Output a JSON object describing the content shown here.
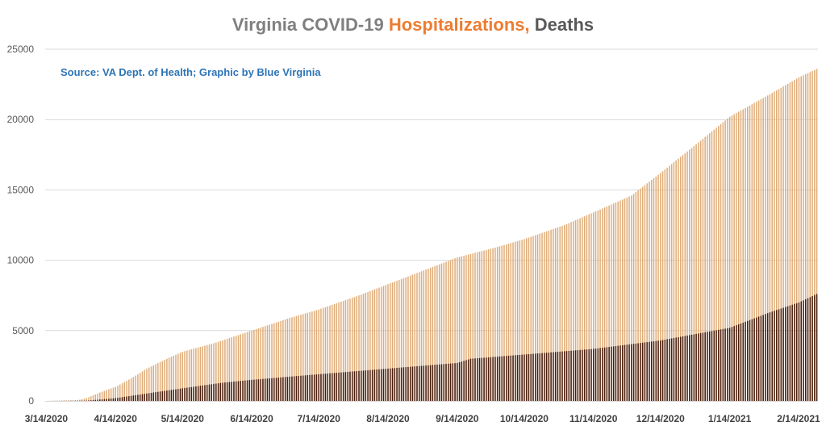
{
  "colors": {
    "title_gray": "#7f7f7f",
    "hosp_orange": "#ed7d31",
    "deaths_dark": "#595959",
    "source_blue": "#2e75b6",
    "hosp_bar": "#e0ad79",
    "deaths_bar": "#4a1e0c",
    "gridline": "#d9d9d9"
  },
  "chart_data": {
    "type": "bar",
    "title_parts": [
      "Virginia COVID-19 ",
      "Hospitalizations,",
      " Deaths"
    ],
    "annotation": "Source: VA Dept. of Health; Graphic by Blue Virginia",
    "xlabel": "",
    "ylabel": "",
    "ylim": [
      0,
      25000
    ],
    "y_ticks": [
      "0",
      "5000",
      "10000",
      "15000",
      "20000",
      "25000"
    ],
    "x_ticks": [
      "3/14/2020",
      "4/14/2020",
      "5/14/2020",
      "6/14/2020",
      "7/14/2020",
      "8/14/2020",
      "9/14/2020",
      "10/14/2020",
      "11/14/2020",
      "12/14/2020",
      "1/14/2021",
      "2/14/2021"
    ],
    "x_range": [
      "3/14/2020",
      "2/22/2021"
    ],
    "grid": true,
    "legend": "none",
    "series": [
      {
        "name": "Hospitalizations",
        "anchors": [
          [
            "3/14/2020",
            0
          ],
          [
            "3/28/2020",
            50
          ],
          [
            "4/1/2020",
            200
          ],
          [
            "4/7/2020",
            600
          ],
          [
            "4/14/2020",
            1000
          ],
          [
            "4/21/2020",
            1600
          ],
          [
            "4/28/2020",
            2300
          ],
          [
            "5/7/2020",
            3000
          ],
          [
            "5/14/2020",
            3500
          ],
          [
            "5/28/2020",
            4100
          ],
          [
            "6/14/2020",
            5000
          ],
          [
            "7/1/2020",
            5900
          ],
          [
            "7/14/2020",
            6500
          ],
          [
            "8/1/2020",
            7500
          ],
          [
            "8/14/2020",
            8300
          ],
          [
            "9/1/2020",
            9400
          ],
          [
            "9/14/2020",
            10200
          ],
          [
            "10/1/2020",
            10900
          ],
          [
            "10/14/2020",
            11500
          ],
          [
            "11/1/2020",
            12500
          ],
          [
            "11/14/2020",
            13400
          ],
          [
            "12/1/2020",
            14600
          ],
          [
            "12/14/2020",
            16200
          ],
          [
            "1/1/2021",
            18500
          ],
          [
            "1/14/2021",
            20200
          ],
          [
            "2/1/2021",
            21800
          ],
          [
            "2/14/2021",
            23000
          ],
          [
            "2/22/2021",
            23600
          ]
        ]
      },
      {
        "name": "Deaths",
        "anchors": [
          [
            "3/14/2020",
            0
          ],
          [
            "4/1/2020",
            20
          ],
          [
            "4/14/2020",
            200
          ],
          [
            "5/1/2020",
            600
          ],
          [
            "5/14/2020",
            900
          ],
          [
            "6/1/2020",
            1300
          ],
          [
            "6/14/2020",
            1500
          ],
          [
            "7/14/2020",
            1900
          ],
          [
            "8/14/2020",
            2300
          ],
          [
            "9/14/2020",
            2700
          ],
          [
            "9/20/2020",
            3000
          ],
          [
            "10/14/2020",
            3300
          ],
          [
            "11/14/2020",
            3700
          ],
          [
            "12/14/2020",
            4300
          ],
          [
            "1/14/2021",
            5200
          ],
          [
            "2/1/2021",
            6300
          ],
          [
            "2/14/2021",
            7000
          ],
          [
            "2/22/2021",
            7600
          ]
        ]
      }
    ]
  }
}
